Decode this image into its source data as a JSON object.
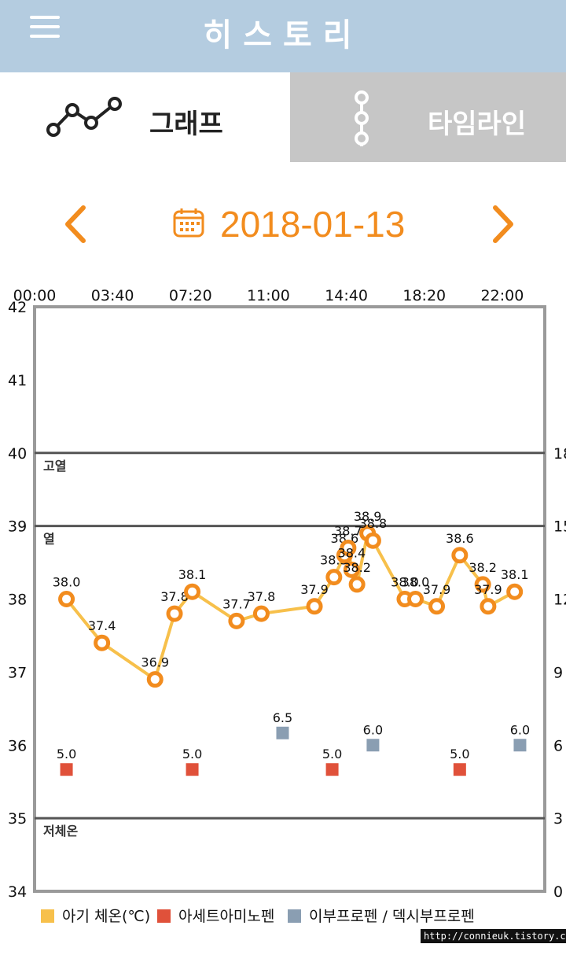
{
  "header": {
    "title": "히스토리",
    "menu_icon": "hamburger-menu-icon"
  },
  "tabs": [
    {
      "label": "그래프",
      "icon": "line-graph-icon",
      "selected": true
    },
    {
      "label": "타임라인",
      "icon": "timeline-icon",
      "selected": false
    }
  ],
  "date_nav": {
    "date": "2018-01-13",
    "prev_icon": "chevron-left-icon",
    "next_icon": "chevron-right-icon",
    "calendar_icon": "calendar-icon"
  },
  "colors": {
    "accent": "#f28c1e",
    "header_bg": "#b4cce0",
    "temp_line": "#f7c04b",
    "acetaminophen": "#e0513a",
    "ibuprofen": "#8a9eb2"
  },
  "legend": [
    {
      "label": "아기 체온(℃)",
      "color": "#f7c04b"
    },
    {
      "label": "아세트아미노펜",
      "color": "#e0513a"
    },
    {
      "label": "이부프로펜 / 덱시부프로펜",
      "color": "#8a9eb2"
    }
  ],
  "watermark": "http://connieuk.tistory.com",
  "chart_data": {
    "type": "line",
    "x_tick_labels": [
      "00:00",
      "03:40",
      "07:20",
      "11:00",
      "14:40",
      "18:20",
      "22:00"
    ],
    "xlim": [
      "00:00",
      "24:00"
    ],
    "y_left": {
      "ylim": [
        34,
        42
      ],
      "ticks": [
        34,
        35,
        36,
        37,
        38,
        39,
        40,
        41,
        42
      ]
    },
    "y_right": {
      "ylim": [
        0,
        24
      ],
      "ticks": [
        "0",
        "3",
        "6",
        "9",
        "12",
        "15",
        "18"
      ]
    },
    "bands": [
      {
        "label": "고열",
        "y": 40
      },
      {
        "label": "열",
        "y": 39
      },
      {
        "label": "저체온",
        "y": 35
      }
    ],
    "series": [
      {
        "name": "아기 체온(℃)",
        "points": [
          {
            "x": "01:30",
            "y": 38.0,
            "label": "38.0"
          },
          {
            "x": "03:10",
            "y": 37.4,
            "label": "37.4"
          },
          {
            "x": "05:40",
            "y": 36.9,
            "label": "36.9"
          },
          {
            "x": "06:35",
            "y": 37.8,
            "label": "37.8"
          },
          {
            "x": "07:25",
            "y": 38.1,
            "label": "38.1"
          },
          {
            "x": "09:30",
            "y": 37.7,
            "label": "37.7"
          },
          {
            "x": "10:40",
            "y": 37.8,
            "label": "37.8"
          },
          {
            "x": "13:10",
            "y": 37.9,
            "label": "37.9"
          },
          {
            "x": "14:05",
            "y": 38.3,
            "label": "38.3"
          },
          {
            "x": "14:35",
            "y": 38.6,
            "label": "38.6"
          },
          {
            "x": "14:45",
            "y": 38.7,
            "label": "38.7"
          },
          {
            "x": "14:55",
            "y": 38.4,
            "label": "38.4"
          },
          {
            "x": "15:10",
            "y": 38.2,
            "label": "38.2"
          },
          {
            "x": "15:40",
            "y": 38.9,
            "label": "38.9"
          },
          {
            "x": "15:55",
            "y": 38.8,
            "label": "38.8"
          },
          {
            "x": "17:25",
            "y": 38.0,
            "label": "38.0"
          },
          {
            "x": "17:55",
            "y": 38.0,
            "label": "38.0"
          },
          {
            "x": "18:55",
            "y": 37.9,
            "label": "37.9"
          },
          {
            "x": "20:00",
            "y": 38.6,
            "label": "38.6"
          },
          {
            "x": "21:05",
            "y": 38.2,
            "label": "38.2"
          },
          {
            "x": "21:20",
            "y": 37.9,
            "label": "37.9"
          },
          {
            "x": "22:35",
            "y": 38.1,
            "label": "38.1"
          }
        ]
      },
      {
        "name": "아세트아미노펜",
        "axis": "right",
        "points": [
          {
            "x": "01:30",
            "y": 5.0,
            "label": "5.0"
          },
          {
            "x": "07:25",
            "y": 5.0,
            "label": "5.0"
          },
          {
            "x": "14:00",
            "y": 5.0,
            "label": "5.0"
          },
          {
            "x": "20:00",
            "y": 5.0,
            "label": "5.0"
          }
        ]
      },
      {
        "name": "이부프로펜 / 덱시부프로펜",
        "axis": "right",
        "points": [
          {
            "x": "11:40",
            "y": 6.5,
            "label": "6.5"
          },
          {
            "x": "15:55",
            "y": 6.0,
            "label": "6.0"
          },
          {
            "x": "22:50",
            "y": 6.0,
            "label": "6.0"
          }
        ]
      }
    ],
    "grid": false,
    "legend_position": "bottom"
  }
}
